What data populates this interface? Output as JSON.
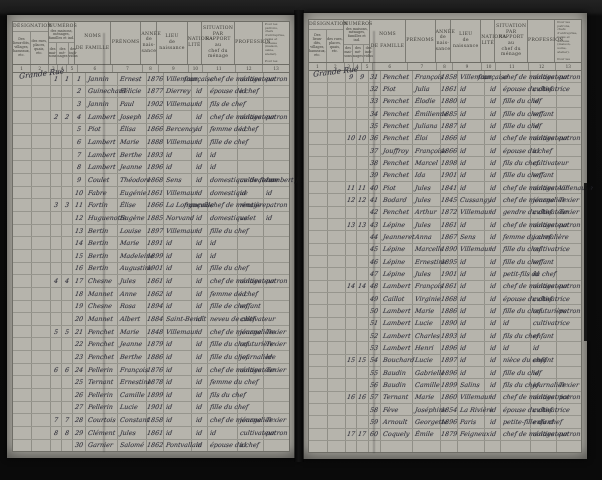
{
  "scan": {
    "background_color": "#0c0c0c",
    "paper_color": "#b0aea6",
    "ink_color": "#2e2e38",
    "printed_line_color": "#8f8e86"
  },
  "form": {
    "designation": {
      "title": "DÉSIGNATION",
      "subs": [
        "Des\nlieux-dits,\nvillages,\nhameaux,\netc.",
        "des rues,\nplaces,\nquais,\netc."
      ]
    },
    "numeros": {
      "title": "NUMÉROS",
      "subtitle": "des maisons, ménages,\nfamilles et ind.",
      "subs": [
        "des\nmai-\nsons",
        "des\nmé-\nnages",
        "des\nindi-\nvidus"
      ]
    },
    "cols": [
      "NOMS\n\nDE FAMILLE",
      "PRÉNOMS",
      "ANNÉE\nde\nnais-\nsance",
      "LIEU\nde\nnaissance",
      "NATIONA-\nLITÉ",
      "SITUATION\nPAR RAPPORT\nau\nchef du ménage",
      "PROFESSION"
    ],
    "obs": "Pour les patrons,\nchefs d'entreprise,\nnoms et adresse\n(maison, usine,\natelier).\n\nPour les ouvriers\net employés, noms\net adresse de la\nmaison qui les\nemploie.",
    "col_numbers": [
      "1",
      "2",
      "3",
      "4",
      "5",
      "6",
      "7",
      "8",
      "9",
      "10",
      "11",
      "12",
      "13"
    ]
  },
  "pages": [
    {
      "side": "left",
      "designation": "Grande Rue",
      "rows": [
        [
          "1",
          "1",
          "1",
          "Jannin",
          "Ernest",
          "1876",
          "Villemaur",
          "française",
          "chef de ménage",
          "cultivateur",
          "patron"
        ],
        [
          "",
          "",
          "2",
          "Guinechard",
          "Félicie",
          "1877",
          "Dierrey",
          "id",
          "épouse de chef",
          "id",
          ""
        ],
        [
          "",
          "",
          "3",
          "Jannin",
          "Paul",
          "1902",
          "Villemaur",
          "id",
          "fils de chef",
          "",
          ""
        ],
        [
          "2",
          "2",
          "4",
          "Lambert",
          "Joseph",
          "1865",
          "id",
          "id",
          "chef de ménage",
          "cultivateur",
          "patron"
        ],
        [
          "",
          "",
          "5",
          "Piot",
          "Élisa",
          "1866",
          "Bercenay",
          "id",
          "femme de chef",
          "id",
          ""
        ],
        [
          "",
          "",
          "6",
          "Lambert",
          "Marie",
          "1888",
          "Villemaur",
          "id",
          "fille de chef",
          "",
          ""
        ],
        [
          "",
          "",
          "7",
          "Lambert",
          "Berthe",
          "1893",
          "id",
          "id",
          "id",
          "",
          ""
        ],
        [
          "",
          "",
          "8",
          "Lambert",
          "Jeanne",
          "1896",
          "id",
          "id",
          "id",
          "",
          ""
        ],
        [
          "",
          "",
          "9",
          "Coulet",
          "Théodore",
          "1868",
          "Sens",
          "id",
          "domestique de ferme",
          "cultivateur",
          "Lambert J."
        ],
        [
          "",
          "",
          "10",
          "Fabre",
          "Eugénie",
          "1861",
          "Villemaur",
          "id",
          "domestique",
          "id",
          "id"
        ],
        [
          "3",
          "3",
          "11",
          "Fortin",
          "Élise",
          "1866",
          "La Longueville",
          "française",
          "chef de ménage",
          "rentière",
          "patron"
        ],
        [
          "",
          "",
          "12",
          "Huguenotte",
          "Eugène",
          "1885",
          "Norvand",
          "id",
          "domestique",
          "valet",
          "id"
        ],
        [
          "",
          "",
          "13",
          "Bertin",
          "Louise",
          "1897",
          "Villemaur",
          "id",
          "fille du chef",
          "",
          ""
        ],
        [
          "",
          "",
          "14",
          "Bertin",
          "Marie",
          "1891",
          "id",
          "id",
          "id",
          "",
          ""
        ],
        [
          "",
          "",
          "15",
          "Bertin",
          "Madeleine",
          "1899",
          "id",
          "id",
          "id",
          "",
          ""
        ],
        [
          "",
          "",
          "16",
          "Bertin",
          "Augustine",
          "1901",
          "id",
          "id",
          "fille du chef",
          "",
          ""
        ],
        [
          "4",
          "4",
          "17",
          "Chesne",
          "Jules",
          "1861",
          "id",
          "id",
          "chef de ménage",
          "cultivateur",
          "patron"
        ],
        [
          "",
          "",
          "18",
          "Mannet",
          "Anne",
          "1862",
          "id",
          "id",
          "femme de chef",
          "id",
          ""
        ],
        [
          "",
          "",
          "19",
          "Chesne",
          "Rosa",
          "1894",
          "id",
          "id",
          "fille de chef",
          "enfant",
          ""
        ],
        [
          "",
          "",
          "20",
          "Mannet",
          "Albert",
          "1884",
          "Saint-Benoît",
          "id",
          "neveu de chef",
          "cultivateur",
          ""
        ],
        [
          "5",
          "5",
          "21",
          "Penchet",
          "Marie",
          "1848",
          "Villemaur",
          "id",
          "chef de ménage",
          "journalière",
          "Texier"
        ],
        [
          "",
          "",
          "22",
          "Penchet",
          "Jeanne",
          "1879",
          "id",
          "id",
          "fille du chef",
          "couturière",
          "Texier"
        ],
        [
          "",
          "",
          "23",
          "Penchet",
          "Berthe",
          "1886",
          "id",
          "id",
          "fille du chef",
          "journalière",
          "id"
        ],
        [
          "6",
          "6",
          "24",
          "Pellerin",
          "François",
          "1876",
          "id",
          "id",
          "chef de ménage",
          "cultivateur",
          "Texier"
        ],
        [
          "",
          "",
          "25",
          "Ternant",
          "Ernestine",
          "1878",
          "id",
          "id",
          "femme du chef",
          "",
          ""
        ],
        [
          "",
          "",
          "26",
          "Pellerin",
          "Camille",
          "1899",
          "id",
          "id",
          "fils du chef",
          "",
          ""
        ],
        [
          "",
          "",
          "27",
          "Pellerin",
          "Lucie",
          "1901",
          "id",
          "id",
          "fille du chef",
          "",
          ""
        ],
        [
          "7",
          "7",
          "28",
          "Courtois",
          "Constant",
          "1858",
          "id",
          "id",
          "chef de ménage",
          "journalier",
          "Texier"
        ],
        [
          "8",
          "8",
          "29",
          "Clément",
          "Jules",
          "1861",
          "id",
          "id",
          "id",
          "cultivateur",
          "patron"
        ],
        [
          "",
          "",
          "30",
          "Garnier",
          "Salomé",
          "1862",
          "Pontvallain",
          "id",
          "épouse du chef",
          "id",
          ""
        ]
      ]
    },
    {
      "side": "right",
      "designation": "Grande Rue",
      "rows": [
        [
          "9",
          "9",
          "31",
          "Penchet",
          "François",
          "1858",
          "Villemaur",
          "française",
          "chef de ménage",
          "cultivateur",
          "patron"
        ],
        [
          "",
          "",
          "32",
          "Piot",
          "Julia",
          "1861",
          "id",
          "id",
          "épouse du chef",
          "cultivatrice",
          ""
        ],
        [
          "",
          "",
          "33",
          "Penchet",
          "Élodie",
          "1880",
          "id",
          "id",
          "fille du chef",
          "id",
          ""
        ],
        [
          "",
          "",
          "34",
          "Penchet",
          "Émilienne",
          "1885",
          "id",
          "id",
          "fille du chef",
          "enfant",
          ""
        ],
        [
          "",
          "",
          "35",
          "Penchet",
          "Juliana",
          "1887",
          "id",
          "id",
          "fille du chef",
          "id",
          ""
        ],
        [
          "10",
          "10",
          "36",
          "Penchet",
          "Éloi",
          "1866",
          "id",
          "id",
          "chef de ménage",
          "cultivateur",
          "patron"
        ],
        [
          "",
          "",
          "37",
          "Jouffroy",
          "Françoise",
          "1866",
          "id",
          "id",
          "épouse du chef",
          "id",
          ""
        ],
        [
          "",
          "",
          "38",
          "Penchet",
          "Marcel",
          "1898",
          "id",
          "id",
          "fils du chef",
          "cultivateur",
          ""
        ],
        [
          "",
          "",
          "39",
          "Penchet",
          "Ida",
          "1901",
          "id",
          "id",
          "fille du chef",
          "enfant",
          ""
        ],
        [
          "11",
          "11",
          "40",
          "Piot",
          "Jules",
          "1841",
          "id",
          "id",
          "chef de ménage",
          "cultivateur",
          "Villenauxe"
        ],
        [
          "12",
          "12",
          "41",
          "Bodard",
          "Jules",
          "1845",
          "Cussangy",
          "id",
          "chef de ménage",
          "journalier",
          "Texier"
        ],
        [
          "",
          "",
          "42",
          "Penchet",
          "Arthur",
          "1872",
          "Villemaur",
          "id",
          "gendre du chef",
          "cultivateur",
          "Texier"
        ],
        [
          "13",
          "13",
          "43",
          "Lépine",
          "Jules",
          "1861",
          "id",
          "id",
          "chef de ménage",
          "cultivateur",
          "patron"
        ],
        [
          "",
          "",
          "44",
          "Jeanneret",
          "Anna",
          "1867",
          "Sens",
          "id",
          "femme du chef",
          "journalière",
          ""
        ],
        [
          "",
          "",
          "45",
          "Lépine",
          "Marcelle",
          "1890",
          "Villemaur",
          "id",
          "fille du chef",
          "cultivatrice",
          ""
        ],
        [
          "",
          "",
          "46",
          "Lépine",
          "Ernestine",
          "1895",
          "id",
          "id",
          "fille du chef",
          "enfant",
          ""
        ],
        [
          "",
          "",
          "47",
          "Lépine",
          "Jules",
          "1901",
          "id",
          "id",
          "petit-fils du chef",
          "id",
          ""
        ],
        [
          "14",
          "14",
          "48",
          "Lambert",
          "François",
          "1861",
          "id",
          "id",
          "chef de ménage",
          "cultivateur",
          "patron"
        ],
        [
          "",
          "",
          "49",
          "Caillot",
          "Virginie",
          "1868",
          "id",
          "id",
          "épouse du chef",
          "cultivatrice",
          ""
        ],
        [
          "",
          "",
          "50",
          "Lambert",
          "Marie",
          "1886",
          "id",
          "id",
          "fille du chef",
          "couturière",
          "patron"
        ],
        [
          "",
          "",
          "51",
          "Lambert",
          "Lucie",
          "1890",
          "id",
          "id",
          "id",
          "cultivatrice",
          ""
        ],
        [
          "",
          "",
          "52",
          "Lambert",
          "Charles",
          "1893",
          "id",
          "id",
          "fils du chef",
          "enfant",
          ""
        ],
        [
          "",
          "",
          "53",
          "Lambert",
          "Henri",
          "1896",
          "id",
          "id",
          "id",
          "id",
          ""
        ],
        [
          "15",
          "15",
          "54",
          "Bouchard",
          "Lucie",
          "1897",
          "id",
          "id",
          "nièce du chef",
          "enfant",
          ""
        ],
        [
          "",
          "",
          "55",
          "Baudin",
          "Gabrielle",
          "1896",
          "id",
          "id",
          "fille du chef",
          "id",
          ""
        ],
        [
          "",
          "",
          "56",
          "Baudin",
          "Camille",
          "1899",
          "Salins",
          "id",
          "fils du chef",
          "journalier",
          "Texier"
        ],
        [
          "16",
          "16",
          "57",
          "Ternant",
          "Marie",
          "1860",
          "Villemaur",
          "id",
          "chef de ménage",
          "cultivatrice",
          "patron"
        ],
        [
          "",
          "",
          "58",
          "Fève",
          "Joséphine",
          "1854",
          "La Rivière",
          "id",
          "épouse du chef",
          "cultivatrice",
          ""
        ],
        [
          "",
          "",
          "59",
          "Arnoult",
          "Georgette",
          "1896",
          "Paris",
          "id",
          "petite-fille du chef",
          "enfant",
          ""
        ],
        [
          "17",
          "17",
          "60",
          "Coquely",
          "Émile",
          "1879",
          "Feigneux",
          "id",
          "chef de ménage",
          "cultivateur",
          "patron"
        ],
        [
          "",
          "",
          "",
          "",
          "",
          "",
          "",
          "",
          "",
          "",
          ""
        ]
      ]
    }
  ]
}
